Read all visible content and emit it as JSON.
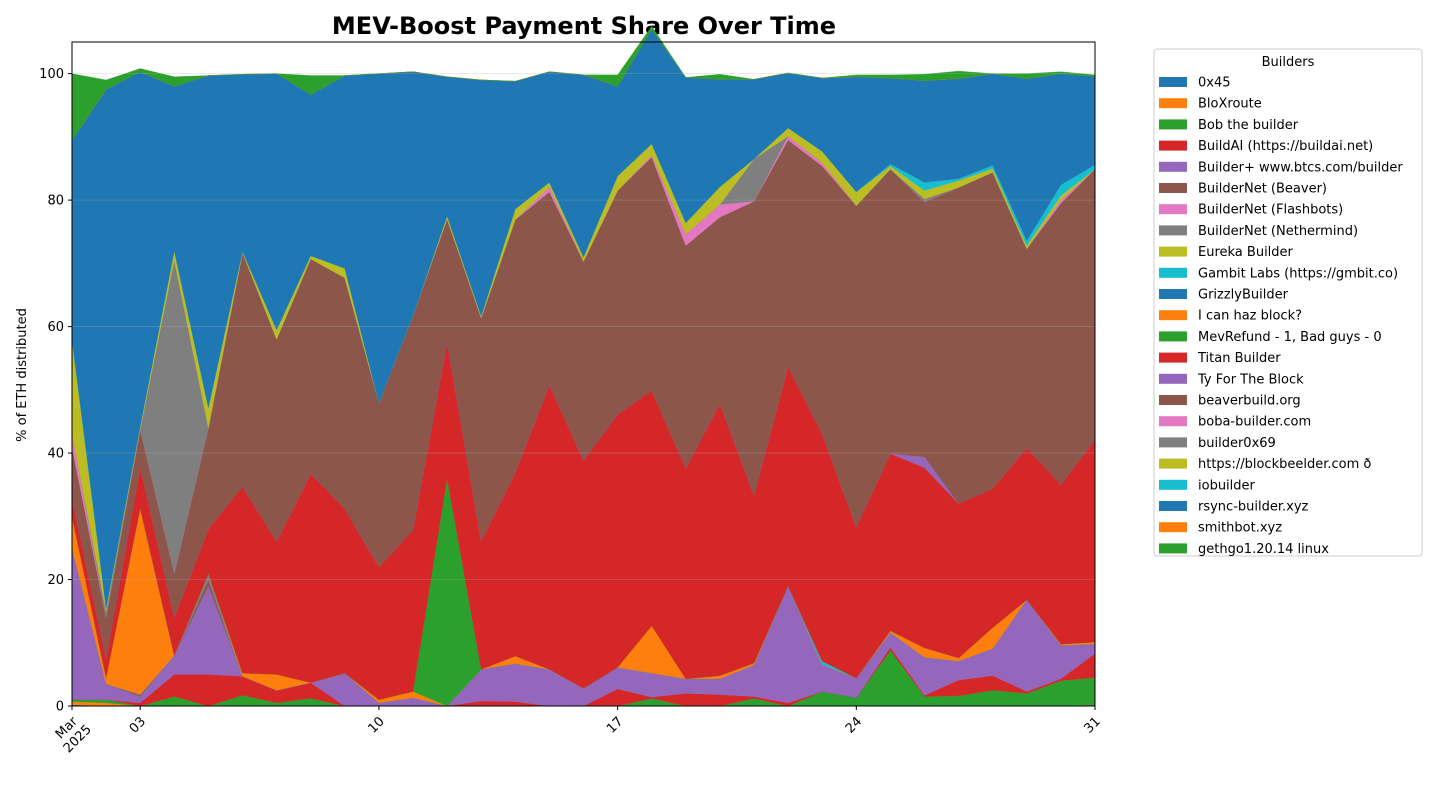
{
  "chart_data": {
    "type": "area",
    "stacked": true,
    "title": "MEV-Boost Payment Share Over Time",
    "xlabel": "",
    "ylabel": "% of ETH distributed",
    "ylim": [
      0,
      105
    ],
    "xlim": [
      "2025-03-01",
      "2025-03-31"
    ],
    "grid": true,
    "y_ticks": [
      0,
      20,
      40,
      60,
      80,
      100
    ],
    "x_ticks": [
      {
        "date": "2025-03-01",
        "label": "Mar",
        "sublabel": "2025"
      },
      {
        "date": "2025-03-03",
        "label": "03"
      },
      {
        "date": "2025-03-10",
        "label": "10"
      },
      {
        "date": "2025-03-17",
        "label": "17"
      },
      {
        "date": "2025-03-24",
        "label": "24"
      },
      {
        "date": "2025-03-31",
        "label": "31"
      }
    ],
    "legend_title": "Builders",
    "legend_position": "outside-right",
    "dates": [
      "2025-03-01",
      "2025-03-02",
      "2025-03-03",
      "2025-03-04",
      "2025-03-05",
      "2025-03-06",
      "2025-03-07",
      "2025-03-08",
      "2025-03-09",
      "2025-03-10",
      "2025-03-11",
      "2025-03-12",
      "2025-03-13",
      "2025-03-14",
      "2025-03-15",
      "2025-03-16",
      "2025-03-17",
      "2025-03-18",
      "2025-03-19",
      "2025-03-20",
      "2025-03-21",
      "2025-03-22",
      "2025-03-23",
      "2025-03-24",
      "2025-03-25",
      "2025-03-26",
      "2025-03-27",
      "2025-03-28",
      "2025-03-29",
      "2025-03-30",
      "2025-03-31"
    ],
    "series": [
      {
        "name": "0x45",
        "color": "#1f77b4",
        "values": [
          0.2,
          0,
          0,
          0,
          0,
          0,
          0,
          0,
          0,
          0,
          0,
          0,
          0,
          0,
          0,
          0,
          0,
          0,
          0,
          0,
          0,
          0,
          0,
          0,
          0,
          0,
          0,
          0,
          0,
          0,
          0.2
        ]
      },
      {
        "name": "BloXroute",
        "color": "#ff7f0e",
        "values": [
          0.5,
          0.5,
          0,
          0,
          0,
          0,
          0,
          0,
          0,
          0,
          0,
          0,
          0,
          0,
          0,
          0,
          0,
          0,
          0,
          0,
          0,
          0,
          0,
          0,
          0,
          0,
          0,
          0,
          0,
          0,
          0
        ]
      },
      {
        "name": "Bob the builder",
        "color": "#2ca02c",
        "values": [
          0.3,
          0.5,
          0,
          1.5,
          0,
          1.7,
          0.5,
          1.2,
          0,
          0,
          0,
          0,
          0,
          0,
          0,
          0,
          0,
          1.2,
          0,
          0,
          1.2,
          0,
          2.3,
          1.3,
          8.8,
          1.5,
          1.6,
          2.5,
          2,
          4,
          4.3
        ]
      },
      {
        "name": "BuildAI (https://buildai.net)",
        "color": "#d62728",
        "values": [
          0,
          0,
          0.5,
          3.5,
          5,
          3,
          2,
          2.5,
          0,
          0,
          0,
          0,
          0.8,
          0.7,
          0,
          0,
          2.7,
          0.2,
          2,
          1.8,
          0.3,
          0.5,
          0,
          0,
          0.5,
          0.2,
          2.5,
          2.3,
          0.3,
          0.3,
          3.8
        ]
      },
      {
        "name": "Builder+ www.btcs.com/builder",
        "color": "#9467bd",
        "values": [
          24,
          2.5,
          1,
          3,
          14,
          0,
          0,
          0,
          5.2,
          0.5,
          1.3,
          0,
          5,
          6,
          5.8,
          2.8,
          3.4,
          3.8,
          2.3,
          2.5,
          5,
          18.5,
          4.3,
          3.1,
          2.3,
          6,
          3,
          4.3,
          14.5,
          5.3,
          1.5
        ]
      },
      {
        "name": "BuilderNet (Beaver)",
        "color": "#8c564b",
        "values": [
          0,
          0,
          0.3,
          0,
          1,
          0,
          0,
          0,
          0,
          0,
          0,
          0,
          0,
          0,
          0,
          0,
          0,
          0,
          0,
          0,
          0,
          0,
          0,
          0,
          0,
          0,
          0,
          0,
          0,
          0,
          0
        ]
      },
      {
        "name": "BuilderNet (Flashbots)",
        "color": "#e377c2",
        "values": [
          0,
          0,
          0,
          0,
          0,
          0,
          0,
          0,
          0,
          0,
          0,
          0,
          0,
          0,
          0,
          0,
          0,
          0,
          0,
          0,
          0,
          0,
          0,
          0,
          0,
          0,
          0,
          0,
          0,
          0,
          0
        ]
      },
      {
        "name": "BuilderNet (Nethermind)",
        "color": "#7f7f7f",
        "values": [
          0,
          0,
          0,
          0,
          1,
          0,
          0,
          0,
          0,
          0,
          0,
          0,
          0,
          0,
          0,
          0,
          0,
          0,
          0,
          0,
          0,
          0,
          0,
          0,
          0,
          0,
          0,
          0,
          0,
          0,
          0
        ]
      },
      {
        "name": "Eureka Builder",
        "color": "#bcbd22",
        "values": [
          0,
          0,
          0,
          0,
          0,
          0,
          0,
          0,
          0,
          0,
          0,
          0,
          0,
          0,
          0,
          0,
          0,
          0,
          0,
          0,
          0,
          0,
          0,
          0,
          0,
          0,
          0,
          0,
          0,
          0,
          0
        ]
      },
      {
        "name": "Gambit Labs (https://gmbit.co)",
        "color": "#17becf",
        "values": [
          0,
          0,
          0,
          0,
          0,
          0,
          0,
          0,
          0,
          0,
          0,
          0,
          0,
          0,
          0,
          0,
          0,
          0,
          0,
          0,
          0,
          0,
          0.5,
          0,
          0,
          0,
          0,
          0,
          0,
          0,
          0
        ]
      },
      {
        "name": "GrizzlyBuilder",
        "color": "#1f77b4",
        "values": [
          0,
          0,
          0,
          0,
          0,
          0,
          0,
          0,
          0,
          0,
          0,
          0,
          0,
          0,
          0,
          0,
          0,
          0,
          0,
          0,
          0,
          0,
          0,
          0,
          0,
          0,
          0,
          0,
          0,
          0,
          0
        ]
      },
      {
        "name": "I can haz block?",
        "color": "#ff7f0e",
        "values": [
          5,
          1,
          29.5,
          0,
          0,
          0.5,
          2.5,
          0,
          0,
          0.5,
          1,
          0,
          0,
          1.2,
          0,
          0,
          0,
          7.5,
          0,
          0.5,
          0.3,
          0,
          0,
          0,
          0.3,
          1.5,
          0.5,
          3.3,
          0,
          0.2,
          0.3
        ]
      },
      {
        "name": "MevRefund - 1, Bad guys - 0",
        "color": "#2ca02c",
        "values": [
          0,
          0,
          0,
          0,
          0,
          0,
          0,
          0,
          0,
          0,
          0,
          36,
          0,
          0,
          0,
          0,
          0,
          0,
          0,
          0,
          0,
          0,
          0,
          0,
          0,
          0,
          0,
          0,
          0,
          0,
          0
        ]
      },
      {
        "name": "Titan Builder",
        "color": "#d62728",
        "values": [
          3,
          3,
          6.5,
          6,
          7,
          29.5,
          21,
          33,
          26,
          21,
          25.5,
          21.5,
          20.3,
          29,
          45,
          36,
          40,
          37.2,
          33.3,
          43,
          26.5,
          34.7,
          35.9,
          23.9,
          28,
          28.5,
          24.4,
          22,
          24,
          25.2,
          32
        ]
      },
      {
        "name": "Ty For The Block",
        "color": "#9467bd",
        "values": [
          0,
          0,
          0,
          0,
          0,
          0,
          0,
          0,
          0,
          0,
          0,
          0,
          0,
          0,
          0,
          0,
          0,
          0,
          0,
          0,
          0,
          0,
          0,
          0,
          0,
          1.7,
          0,
          0,
          0,
          0,
          0
        ]
      },
      {
        "name": "beaverbuild.org",
        "color": "#8c564b",
        "values": [
          8,
          6.5,
          6,
          7,
          16,
          37,
          32,
          34,
          36.5,
          26,
          34,
          19.5,
          35.3,
          40,
          30.5,
          31.5,
          35.4,
          36.9,
          35.2,
          29.5,
          46.5,
          35.8,
          42.4,
          50.8,
          45,
          40.3,
          50,
          50,
          31.5,
          44.5,
          42.8
        ]
      },
      {
        "name": "boba-builder.com",
        "color": "#e377c2",
        "values": [
          2,
          0,
          0,
          0,
          0,
          0,
          0,
          0,
          0,
          0,
          0,
          0,
          0,
          0,
          0.8,
          0,
          0,
          0.3,
          1.8,
          2,
          0,
          0.6,
          0.5,
          0,
          0,
          0,
          0,
          0,
          0,
          0.5,
          0
        ]
      },
      {
        "name": "builder0x69",
        "color": "#7f7f7f",
        "values": [
          0,
          1,
          0,
          49.5,
          0,
          0,
          0,
          0,
          0,
          0,
          0,
          0,
          0,
          0,
          0,
          0,
          0,
          0,
          0,
          0,
          6.7,
          0,
          0,
          0,
          0,
          0.5,
          0,
          0,
          0,
          0,
          0
        ]
      },
      {
        "name": "https://blockbeelder.com 🐝🐝",
        "color": "#bcbd22",
        "values": [
          15,
          0.5,
          0.5,
          1.5,
          3.2,
          0.2,
          1.5,
          0.5,
          1.5,
          0,
          0,
          0.5,
          0.3,
          1.7,
          0.7,
          0.7,
          2.3,
          1.8,
          1.8,
          2.8,
          0,
          1.3,
          1.8,
          2.2,
          0.5,
          1.3,
          1.1,
          0.6,
          0.5,
          0.7,
          0
        ]
      },
      {
        "name": "iobuilder",
        "color": "#17becf",
        "values": [
          0,
          0,
          0,
          0,
          0,
          0,
          0,
          0,
          0,
          0,
          0,
          0,
          0,
          0,
          0,
          0,
          0,
          0,
          0,
          0,
          0,
          0,
          0,
          0,
          0.3,
          1.3,
          0.3,
          0.5,
          0.8,
          1.7,
          0.7
        ]
      },
      {
        "name": "rsync-builder.xyz",
        "color": "#1f77b4",
        "values": [
          31.5,
          82,
          56,
          26,
          52.5,
          28,
          40.5,
          25.5,
          30.5,
          52,
          38.5,
          22,
          37.3,
          20.2,
          17.5,
          28.8,
          14.2,
          18.1,
          23,
          17,
          12.6,
          8.7,
          11.6,
          18.2,
          13.6,
          16.1,
          15.8,
          14.5,
          25.6,
          17.6,
          14
        ]
      },
      {
        "name": "smithbot.xyz",
        "color": "#ff7f0e",
        "values": [
          0,
          0,
          0,
          0,
          0,
          0,
          0,
          0,
          0,
          0,
          0,
          0,
          0,
          0,
          0,
          0,
          0,
          0,
          0,
          0,
          0,
          0,
          0,
          0,
          0,
          0,
          0,
          0,
          0,
          0,
          0
        ]
      },
      {
        "name": "geth go1.20.14 linux",
        "color": "#2ca02c",
        "values": [
          10.5,
          1.5,
          0.5,
          1.5,
          0,
          0,
          0,
          3,
          0,
          0,
          0,
          0,
          0,
          0,
          0,
          0,
          1.8,
          0.5,
          0,
          0.8,
          0,
          0,
          0,
          0.3,
          0.5,
          1,
          1.2,
          0,
          0.8,
          0.3,
          0.2
        ]
      }
    ]
  },
  "legend_labels": [
    "0x45",
    "BloXroute",
    "Bob the builder",
    "BuildAI (https://buildai.net)",
    "Builder+ www.btcs.com/builder",
    "BuilderNet (Beaver)",
    "BuilderNet (Flashbots)",
    "BuilderNet (Nethermind)",
    "Eureka Builder",
    "Gambit Labs (https://gmbit.co)",
    "GrizzlyBuilder",
    "I can haz block?",
    "MevRefund - 1, Bad guys - 0",
    "Titan Builder",
    "Ty For The Block",
    "beaverbuild.org",
    "boba-builder.com",
    "builder0x69",
    "https://blockbeelder.com ð",
    "iobuilder",
    "rsync-builder.xyz",
    "smithbot.xyz",
    "\u0002geth\u0005go1.20.14 linux"
  ]
}
